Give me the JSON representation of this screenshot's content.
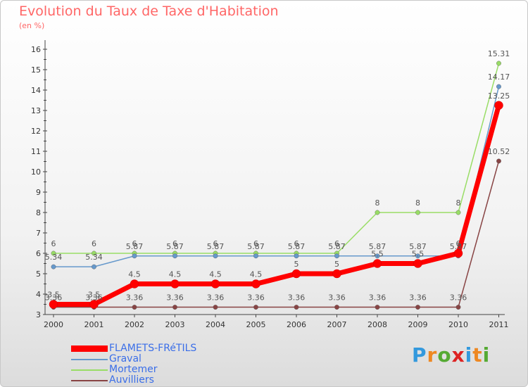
{
  "chart_data": {
    "type": "line",
    "title": "Evolution du Taux de Taxe d'Habitation",
    "subtitle": "(en %)",
    "xlabel": "",
    "ylabel": "",
    "categories": [
      "2000",
      "2001",
      "2002",
      "2003",
      "2004",
      "2005",
      "2006",
      "2007",
      "2008",
      "2009",
      "2010",
      "2011"
    ],
    "yticks": [
      "3",
      "4",
      "5",
      "6",
      "7",
      "8",
      "9",
      "10",
      "11",
      "12",
      "13",
      "14",
      "15",
      "16"
    ],
    "ylim": [
      3,
      16
    ],
    "grid": false,
    "legend_position": "bottom-left",
    "series": [
      {
        "name": "Mortemer",
        "color": "#99dd66",
        "values": [
          6,
          6,
          6,
          6,
          6,
          6,
          6,
          6,
          8,
          8,
          8,
          15.31
        ],
        "labels": [
          "6",
          "6",
          "6",
          "6",
          "6",
          "6",
          "6",
          "6",
          "8",
          "8",
          "8",
          "15.31"
        ]
      },
      {
        "name": "Graval",
        "color": "#6699cc",
        "values": [
          5.34,
          5.34,
          5.87,
          5.87,
          5.87,
          5.87,
          5.87,
          5.87,
          5.87,
          5.87,
          5.87,
          14.17
        ],
        "labels": [
          "5.34",
          "5.34",
          "5.87",
          "5.87",
          "5.87",
          "5.87",
          "5.87",
          "5.87",
          "5.87",
          "5.87",
          "5.87",
          "14.17"
        ]
      },
      {
        "name": "Auvilliers",
        "color": "#884444",
        "values": [
          3.36,
          3.36,
          3.36,
          3.36,
          3.36,
          3.36,
          3.36,
          3.36,
          3.36,
          3.36,
          3.36,
          10.52
        ],
        "labels": [
          "3.36",
          "3.36",
          "3.36",
          "3.36",
          "3.36",
          "3.36",
          "3.36",
          "3.36",
          "3.36",
          "3.36",
          "3.36",
          "10.52"
        ]
      },
      {
        "name": "FLAMETS-FRéTILS",
        "color": "#ff0000",
        "values": [
          3.5,
          3.5,
          4.5,
          4.5,
          4.5,
          4.5,
          5,
          5,
          5.5,
          5.5,
          6,
          13.25
        ],
        "labels": [
          "3.5",
          "3.5",
          "4.5",
          "4.5",
          "4.5",
          "4.5",
          "5",
          "5",
          "5.5",
          "5.5",
          "6",
          "13.25"
        ]
      }
    ]
  },
  "legend": [
    {
      "name": "FLAMETS-FRéTILS",
      "color": "#ff0000"
    },
    {
      "name": "Graval",
      "color": "#6699cc"
    },
    {
      "name": "Mortemer",
      "color": "#99dd66"
    },
    {
      "name": "Auvilliers",
      "color": "#884444"
    }
  ],
  "logo": {
    "letters": [
      "P",
      "r",
      "o",
      "x",
      "i",
      "t",
      "i"
    ],
    "colors": [
      "#3399dd",
      "#ee8822",
      "#55aa33",
      "#dd2222",
      "#3399dd",
      "#ee8822",
      "#55aa33"
    ]
  }
}
